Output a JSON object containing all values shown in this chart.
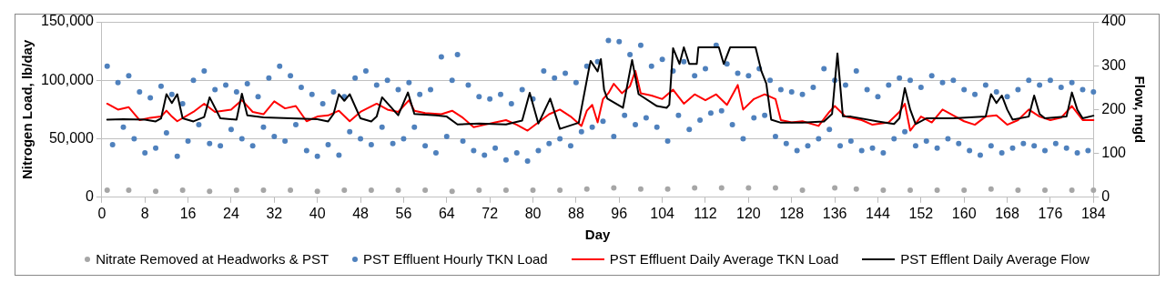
{
  "chart_data": {
    "type": "scatter",
    "xlabel": "Day",
    "ylabel": "Nitrogen Load, lb/day",
    "y2label": "Flow, mgd",
    "xlim": [
      0,
      184
    ],
    "xticks": [
      0,
      8,
      16,
      24,
      32,
      40,
      48,
      56,
      64,
      72,
      80,
      88,
      96,
      104,
      112,
      120,
      128,
      136,
      144,
      152,
      160,
      168,
      176,
      184
    ],
    "ylim": [
      0,
      150000
    ],
    "yticks": [
      0,
      {
        "value": 50000,
        "label": "50,000"
      },
      {
        "value": 100000,
        "label": "100,000"
      },
      {
        "value": 150000,
        "label": "150,000"
      }
    ],
    "y2lim": [
      0,
      400
    ],
    "y2ticks": [
      0,
      100,
      200,
      300,
      400
    ],
    "grid": "y",
    "legend": "bottom",
    "series": [
      {
        "name": "Nitrate Removed at Headworks & PST",
        "type": "scatter",
        "marker": "circle",
        "color": "#a6a6a6",
        "x": [
          1,
          5,
          10,
          15,
          20,
          25,
          30,
          35,
          40,
          45,
          50,
          55,
          60,
          65,
          70,
          75,
          80,
          85,
          90,
          95,
          100,
          105,
          110,
          115,
          120,
          125,
          130,
          136,
          140,
          145,
          150,
          155,
          160,
          165,
          170,
          175,
          180,
          184
        ],
        "values": [
          6000,
          6000,
          5000,
          6000,
          5000,
          6000,
          6000,
          6000,
          5000,
          6000,
          6000,
          6000,
          6000,
          5000,
          6000,
          6000,
          6000,
          6000,
          7000,
          8000,
          7000,
          7000,
          8000,
          8000,
          8000,
          8000,
          6000,
          8000,
          7000,
          6000,
          6000,
          6000,
          6000,
          7000,
          6000,
          6000,
          6000,
          6000
        ]
      },
      {
        "name": "PST Effluent Hourly TKN Load",
        "type": "scatter",
        "marker": "circle",
        "color": "#4f81bd",
        "x": [
          1,
          2,
          3,
          4,
          5,
          6,
          7,
          8,
          9,
          10,
          11,
          12,
          13,
          14,
          15,
          16,
          17,
          18,
          19,
          20,
          21,
          22,
          23,
          24,
          25,
          26,
          27,
          28,
          29,
          30,
          31,
          32,
          33,
          34,
          35,
          36,
          37,
          38,
          39,
          40,
          41,
          42,
          43,
          44,
          45,
          46,
          47,
          48,
          49,
          50,
          51,
          52,
          53,
          54,
          55,
          56,
          57,
          58,
          59,
          60,
          61,
          62,
          63,
          64,
          65,
          66,
          67,
          68,
          69,
          70,
          71,
          72,
          73,
          74,
          75,
          76,
          77,
          78,
          79,
          80,
          81,
          82,
          83,
          84,
          85,
          86,
          87,
          88,
          89,
          90,
          91,
          92,
          93,
          94,
          95,
          96,
          97,
          98,
          99,
          100,
          101,
          102,
          103,
          104,
          105,
          106,
          107,
          108,
          109,
          110,
          111,
          112,
          113,
          114,
          115,
          116,
          117,
          118,
          119,
          120,
          121,
          122,
          123,
          124,
          125,
          126,
          127,
          128,
          129,
          130,
          131,
          132,
          133,
          134,
          135,
          136,
          137,
          138,
          139,
          140,
          141,
          142,
          143,
          144,
          145,
          146,
          147,
          148,
          149,
          150,
          151,
          152,
          153,
          154,
          155,
          156,
          157,
          158,
          159,
          160,
          161,
          162,
          163,
          164,
          165,
          166,
          167,
          168,
          169,
          170,
          171,
          172,
          173,
          174,
          175,
          176,
          177,
          178,
          179,
          180,
          181,
          182,
          183,
          184
        ],
        "values": [
          112000,
          45000,
          98000,
          60000,
          104000,
          50000,
          90000,
          38000,
          85000,
          42000,
          95000,
          55000,
          88000,
          35000,
          80000,
          48000,
          100000,
          62000,
          108000,
          46000,
          92000,
          44000,
          96000,
          58000,
          90000,
          50000,
          97000,
          44000,
          86000,
          60000,
          102000,
          52000,
          112000,
          48000,
          104000,
          62000,
          94000,
          40000,
          88000,
          35000,
          80000,
          45000,
          90000,
          36000,
          86000,
          56000,
          102000,
          50000,
          108000,
          45000,
          96000,
          60000,
          100000,
          46000,
          92000,
          50000,
          98000,
          60000,
          88000,
          44000,
          92000,
          38000,
          120000,
          52000,
          100000,
          122000,
          48000,
          96000,
          40000,
          86000,
          36000,
          84000,
          42000,
          88000,
          32000,
          80000,
          38000,
          92000,
          31000,
          84000,
          40000,
          108000,
          46000,
          102000,
          50000,
          106000,
          44000,
          98000,
          56000,
          112000,
          60000,
          116000,
          65000,
          134000,
          52000,
          133000,
          70000,
          122000,
          62000,
          130000,
          68000,
          112000,
          60000,
          118000,
          48000,
          108000,
          70000,
          116000,
          58000,
          104000,
          66000,
          110000,
          72000,
          130000,
          74000,
          114000,
          62000,
          106000,
          50000,
          104000,
          68000,
          110000,
          70000,
          100000,
          52000,
          92000,
          46000,
          90000,
          40000,
          88000,
          44000,
          94000,
          50000,
          110000,
          58000,
          100000,
          44000,
          96000,
          48000,
          108000,
          40000,
          92000,
          42000,
          86000,
          38000,
          96000,
          50000,
          102000,
          56000,
          100000,
          44000,
          94000,
          48000,
          104000,
          42000,
          98000,
          50000,
          100000,
          46000,
          92000,
          40000,
          88000,
          36000,
          96000,
          44000,
          90000,
          38000,
          86000,
          42000,
          92000,
          46000,
          100000,
          44000,
          96000,
          40000,
          100000,
          46000,
          94000,
          42000,
          98000,
          38000,
          92000,
          40000,
          90000
        ]
      },
      {
        "name": "PST Effluent Daily Average TKN Load",
        "type": "line",
        "marker": "none",
        "color": "#ff0000",
        "x": [
          1,
          3,
          5,
          7,
          9,
          11,
          12,
          13,
          14,
          17,
          19,
          21,
          24,
          26,
          28,
          30,
          32,
          34,
          36,
          38,
          40,
          42,
          44,
          46,
          48,
          51,
          53,
          55,
          57,
          58,
          60,
          63,
          65,
          67,
          69,
          71,
          73,
          75,
          77,
          79,
          81,
          83,
          85,
          87,
          89,
          90,
          91,
          92,
          93,
          94,
          95,
          96.5,
          98,
          99,
          100,
          102,
          104,
          106,
          108,
          110,
          112,
          114,
          116,
          118,
          119,
          121,
          123,
          125,
          126,
          128,
          130,
          133,
          135,
          136,
          138,
          141,
          143,
          146,
          148,
          149,
          150,
          152,
          154,
          156,
          158,
          160,
          162,
          164,
          166,
          168,
          170,
          172,
          174,
          176,
          178,
          180,
          182,
          184
        ],
        "values": [
          80000,
          75000,
          77000,
          66000,
          68000,
          69000,
          74000,
          69000,
          65000,
          73000,
          80000,
          73000,
          75000,
          83000,
          73000,
          71000,
          82000,
          76000,
          78000,
          65000,
          69000,
          70000,
          74000,
          65000,
          73000,
          80000,
          75000,
          73000,
          83000,
          74000,
          72000,
          71000,
          74000,
          68000,
          60000,
          62000,
          64000,
          66000,
          62000,
          57000,
          64000,
          71000,
          75000,
          69000,
          61000,
          74000,
          79000,
          64000,
          84000,
          89000,
          97000,
          89000,
          95000,
          108000,
          89000,
          87000,
          84000,
          92000,
          80000,
          88000,
          83000,
          88000,
          79000,
          96000,
          75000,
          84000,
          88000,
          84000,
          66000,
          64000,
          65000,
          61000,
          73000,
          78000,
          69000,
          66000,
          62000,
          64000,
          73000,
          80000,
          57000,
          69000,
          64000,
          75000,
          70000,
          65000,
          62000,
          69000,
          70000,
          62000,
          66000,
          75000,
          69000,
          66000,
          68000,
          78000,
          66000,
          66000
        ]
      },
      {
        "name": "PST Efflent Daily Average Flow",
        "type": "line",
        "marker": "none",
        "color": "#000000",
        "axis": "y2",
        "x": [
          1,
          4,
          8,
          10,
          11,
          12,
          13,
          14,
          15,
          17,
          19,
          20,
          22,
          25,
          26,
          27,
          30,
          35,
          40,
          42,
          43,
          44,
          45,
          46,
          48,
          50,
          51,
          52,
          55,
          56.8,
          58,
          62,
          64,
          66,
          70,
          75,
          78,
          79.4,
          81,
          83.2,
          85,
          88.5,
          90.3,
          90.7,
          92,
          92.6,
          93.2,
          93.8,
          96.7,
          98.4,
          99.6,
          103,
          104.8,
          105.3,
          106,
          107.2,
          108,
          109,
          110.4,
          110.7,
          114.5,
          115.4,
          116.6,
          121.3,
          122.4,
          123.3,
          124.2,
          126,
          130,
          134,
          135.5,
          136.5,
          137.5,
          139,
          144,
          147,
          148,
          149,
          150,
          151,
          153,
          158,
          164,
          165,
          166,
          167,
          168,
          169,
          172,
          173,
          174,
          175,
          179,
          180,
          181,
          182,
          184
        ],
        "values": [
          177,
          178,
          177,
          173,
          180,
          235,
          215,
          235,
          180,
          173,
          183,
          228,
          180,
          177,
          236,
          187,
          182,
          180,
          178,
          173,
          190,
          235,
          220,
          235,
          180,
          173,
          184,
          228,
          187,
          239,
          190,
          187,
          184,
          166,
          168,
          166,
          175,
          238,
          168,
          225,
          156,
          170,
          287,
          311,
          287,
          315,
          245,
          225,
          204,
          313,
          235,
          208,
          204,
          211,
          340,
          304,
          342,
          304,
          304,
          342,
          342,
          304,
          342,
          342,
          287,
          259,
          177,
          170,
          170,
          173,
          190,
          328,
          185,
          184,
          173,
          167,
          180,
          249,
          200,
          167,
          180,
          180,
          184,
          235,
          215,
          232,
          200,
          177,
          184,
          232,
          190,
          180,
          184,
          239,
          200,
          180,
          186
        ]
      }
    ]
  }
}
